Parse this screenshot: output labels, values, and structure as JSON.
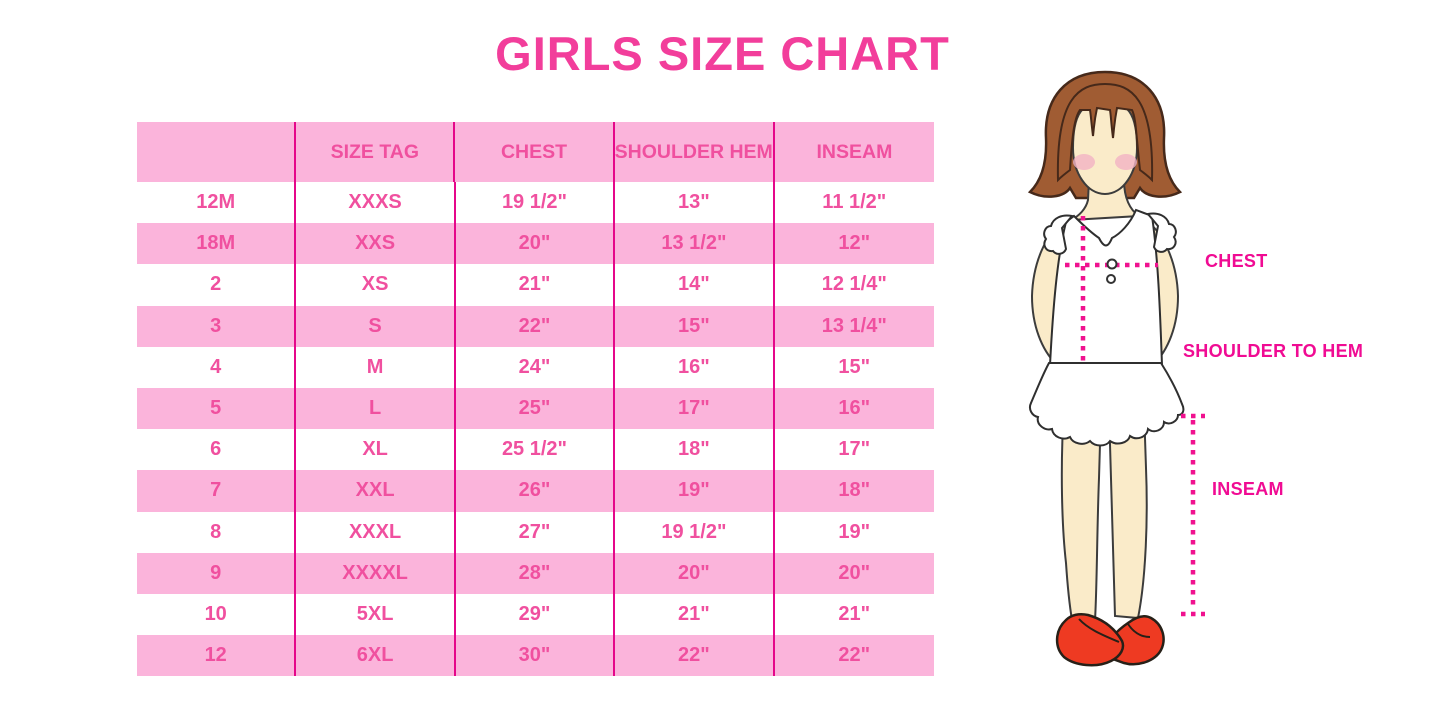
{
  "title": "GIRLS SIZE CHART",
  "table": {
    "columns": [
      "",
      "SIZE TAG",
      "CHEST",
      "SHOULDER HEM",
      "INSEAM"
    ],
    "rows": [
      [
        "12M",
        "XXXS",
        "19 1/2\"",
        "13\"",
        "11 1/2\""
      ],
      [
        "18M",
        "XXS",
        "20\"",
        "13 1/2\"",
        "12\""
      ],
      [
        "2",
        "XS",
        "21\"",
        "14\"",
        "12 1/4\""
      ],
      [
        "3",
        "S",
        "22\"",
        "15\"",
        "13 1/4\""
      ],
      [
        "4",
        "M",
        "24\"",
        "16\"",
        "15\""
      ],
      [
        "5",
        "L",
        "25\"",
        "17\"",
        "16\""
      ],
      [
        "6",
        "XL",
        "25 1/2\"",
        "18\"",
        "17\""
      ],
      [
        "7",
        "XXL",
        "26\"",
        "19\"",
        "18\""
      ],
      [
        "8",
        "XXXL",
        "27\"",
        "19 1/2\"",
        "19\""
      ],
      [
        "9",
        "XXXXL",
        "28\"",
        "20\"",
        "20\""
      ],
      [
        "10",
        "5XL",
        "29\"",
        "21\"",
        "21\""
      ],
      [
        "12",
        "6XL",
        "30\"",
        "22\"",
        "22\""
      ]
    ]
  },
  "chart_data": {
    "type": "table",
    "title": "GIRLS SIZE CHART",
    "columns": [
      "",
      "SIZE TAG",
      "CHEST",
      "SHOULDER HEM",
      "INSEAM"
    ],
    "rows": [
      [
        "12M",
        "XXXS",
        "19 1/2\"",
        "13\"",
        "11 1/2\""
      ],
      [
        "18M",
        "XXS",
        "20\"",
        "13 1/2\"",
        "12\""
      ],
      [
        "2",
        "XS",
        "21\"",
        "14\"",
        "12 1/4\""
      ],
      [
        "3",
        "S",
        "22\"",
        "15\"",
        "13 1/4\""
      ],
      [
        "4",
        "M",
        "24\"",
        "16\"",
        "15\""
      ],
      [
        "5",
        "L",
        "25\"",
        "17\"",
        "16\""
      ],
      [
        "6",
        "XL",
        "25 1/2\"",
        "18\"",
        "17\""
      ],
      [
        "7",
        "XXL",
        "26\"",
        "19\"",
        "18\""
      ],
      [
        "8",
        "XXXL",
        "27\"",
        "19 1/2\"",
        "19\""
      ],
      [
        "9",
        "XXXXL",
        "28\"",
        "20\"",
        "20\""
      ],
      [
        "10",
        "5XL",
        "29\"",
        "21\"",
        "21\""
      ],
      [
        "12",
        "6XL",
        "30\"",
        "22\"",
        "22\""
      ]
    ]
  },
  "diagram": {
    "chest_label": "CHEST",
    "shoulder_to_hem_label": "SHOULDER TO HEM",
    "inseam_label": "INSEAM"
  },
  "colors": {
    "title_pink": "#F23E9B",
    "row_pink": "#FBB4DB",
    "table_text_pink": "#F0509F",
    "rule_magenta": "#E5078A",
    "label_magenta": "#F00B93",
    "dot_magenta": "#F0128F",
    "hair_brown": "#A05C33",
    "skin": "#FAEBC9",
    "blush_pink": "#F3B3C4",
    "shoe_red": "#EE3A22"
  }
}
